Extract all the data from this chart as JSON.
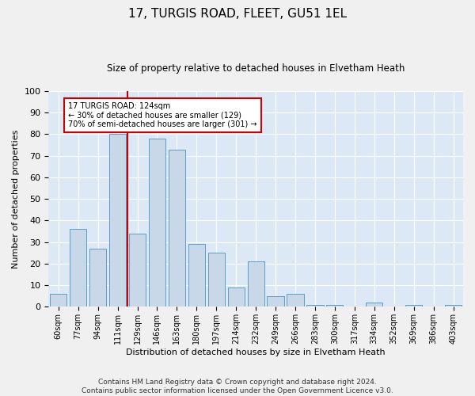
{
  "title1": "17, TURGIS ROAD, FLEET, GU51 1EL",
  "title2": "Size of property relative to detached houses in Elvetham Heath",
  "xlabel": "Distribution of detached houses by size in Elvetham Heath",
  "ylabel": "Number of detached properties",
  "categories": [
    "60sqm",
    "77sqm",
    "94sqm",
    "111sqm",
    "129sqm",
    "146sqm",
    "163sqm",
    "180sqm",
    "197sqm",
    "214sqm",
    "232sqm",
    "249sqm",
    "266sqm",
    "283sqm",
    "300sqm",
    "317sqm",
    "334sqm",
    "352sqm",
    "369sqm",
    "386sqm",
    "403sqm"
  ],
  "values": [
    6,
    36,
    27,
    80,
    34,
    78,
    73,
    29,
    25,
    9,
    21,
    5,
    6,
    1,
    1,
    0,
    2,
    0,
    1,
    0,
    1
  ],
  "bar_color": "#c8d8e8",
  "bar_edge_color": "#5a9ec8",
  "bar_edge_width": 0.7,
  "vline_color": "#cc0000",
  "vline_x_index": 3.5,
  "annotation_text": "17 TURGIS ROAD: 124sqm\n← 30% of detached houses are smaller (129)\n70% of semi-detached houses are larger (301) →",
  "annotation_box_color": "#ffffff",
  "annotation_box_edge": "#cc0000",
  "ylim": [
    0,
    100
  ],
  "yticks": [
    0,
    10,
    20,
    30,
    40,
    50,
    60,
    70,
    80,
    90,
    100
  ],
  "plot_bg_color": "#dce8f5",
  "fig_bg_color": "#f0f0f0",
  "footer": "Contains HM Land Registry data © Crown copyright and database right 2024.\nContains public sector information licensed under the Open Government Licence v3.0.",
  "title1_fontsize": 11,
  "title2_fontsize": 8.5,
  "ylabel_fontsize": 8,
  "xlabel_fontsize": 8,
  "footer_fontsize": 6.5,
  "tick_fontsize": 7
}
